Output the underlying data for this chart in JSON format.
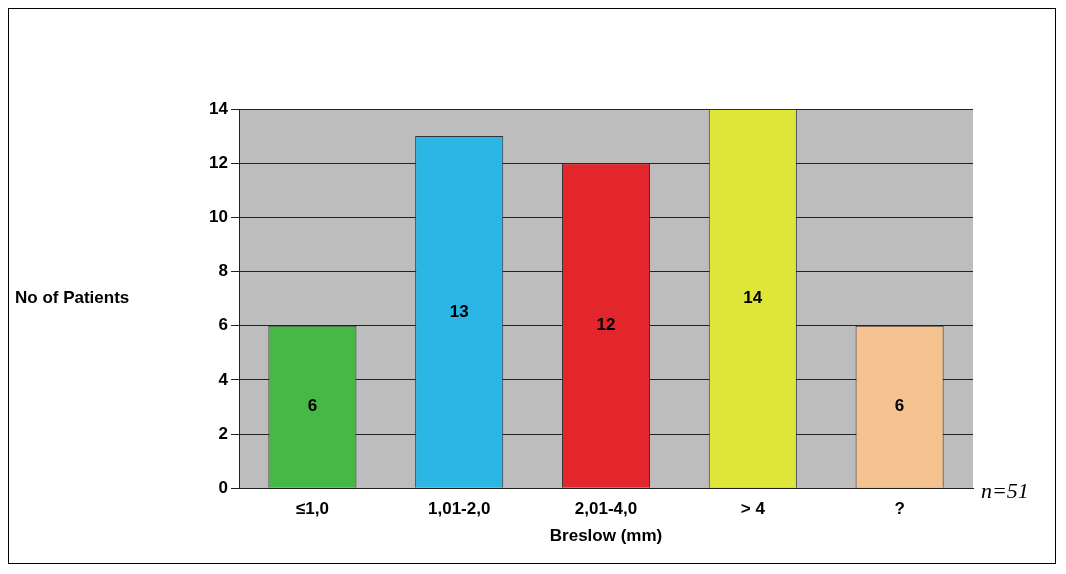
{
  "chart_data": {
    "type": "bar",
    "xlabel": "Breslow (mm)",
    "ylabel": "No of Patients",
    "categories": [
      "≤1,0",
      "1,01-2,0",
      "2,01-4,0",
      "> 4",
      "?"
    ],
    "values": [
      6,
      13,
      12,
      14,
      6
    ],
    "colors": [
      "#45b845",
      "#2bb6e6",
      "#e3262b",
      "#dfe63a",
      "#f5c390"
    ],
    "ylim": [
      0,
      14
    ],
    "yticks": [
      0,
      2,
      4,
      6,
      8,
      10,
      12,
      14
    ],
    "grid": "y",
    "data_labels": true,
    "legend": false,
    "annotations": [
      "n=51"
    ]
  }
}
